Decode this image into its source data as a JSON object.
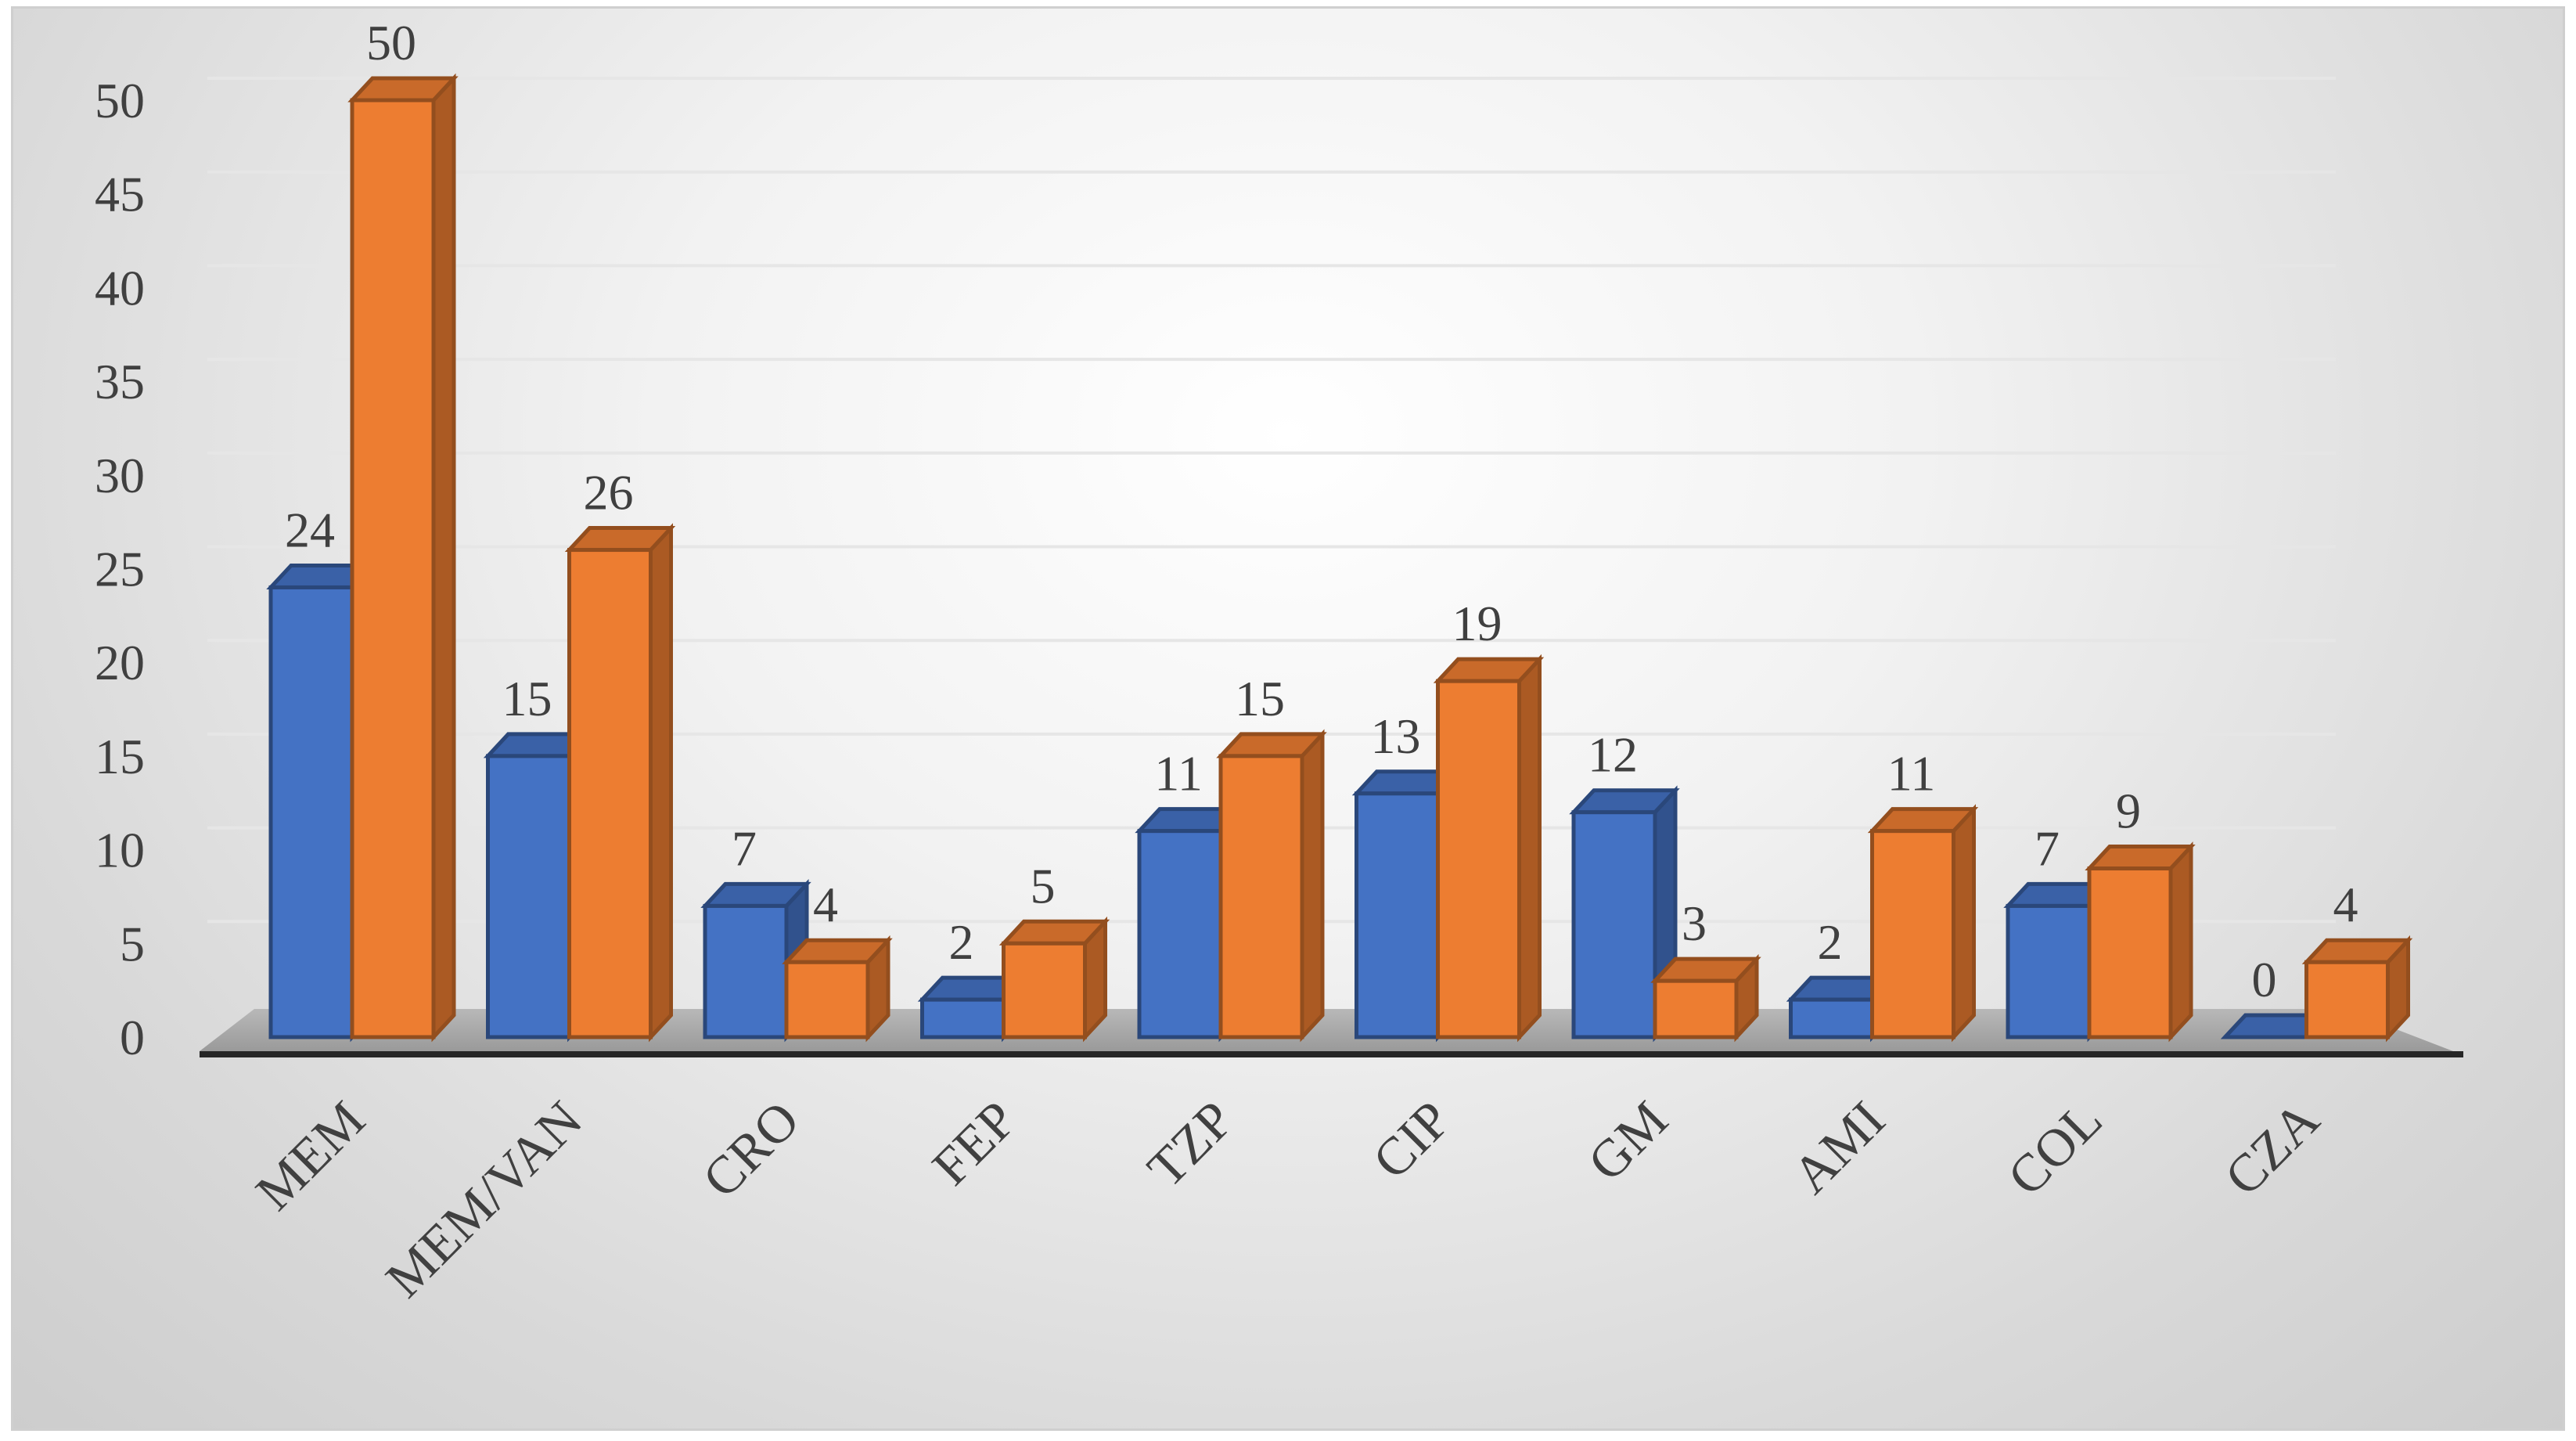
{
  "chart_data": {
    "type": "bar",
    "style": "3d-clustered-column",
    "title": "",
    "xlabel": "",
    "ylabel": "",
    "ylim": [
      0,
      50
    ],
    "yticks": [
      0,
      5,
      10,
      15,
      20,
      25,
      30,
      35,
      40,
      45,
      50
    ],
    "grid": true,
    "legend": "none",
    "categories": [
      "MEM",
      "MEM/VAN",
      "CRO",
      "FEP",
      "TZP",
      "CIP",
      "GM",
      "AMI",
      "COL",
      "CZA"
    ],
    "series": [
      {
        "color": "#4472C4",
        "values": [
          24,
          15,
          7,
          2,
          11,
          13,
          12,
          2,
          7,
          0
        ]
      },
      {
        "color": "#ED7D31",
        "values": [
          50,
          26,
          4,
          5,
          15,
          19,
          3,
          11,
          9,
          4
        ]
      }
    ]
  }
}
